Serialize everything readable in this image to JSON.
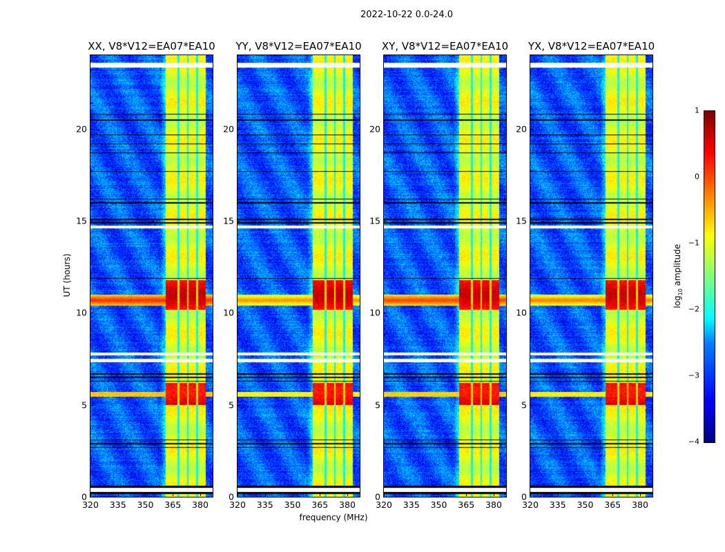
{
  "chart_data": {
    "type": "heatmap",
    "title": "2022-10-22 0.0-24.0",
    "xlabel": "frequency (MHz)",
    "ylabel": "UT (hours)",
    "xlim": [
      320,
      386.8
    ],
    "ylim": [
      0,
      24
    ],
    "xticks": [
      "320",
      "335",
      "350",
      "365",
      "380"
    ],
    "xtick_values": [
      320,
      335,
      350,
      365,
      380
    ],
    "yticks": [
      "0",
      "5",
      "10",
      "15",
      "20"
    ],
    "ytick_values": [
      0,
      5,
      10,
      15,
      20
    ],
    "panels": [
      {
        "title": "XX, V8*V12=EA07*EA10",
        "rfi_line_level": 0.2
      },
      {
        "title": "YY, V8*V12=EA07*EA10",
        "rfi_line_level": -0.3
      },
      {
        "title": "XY, V8*V12=EA07*EA10",
        "rfi_line_level": 0.1
      },
      {
        "title": "YX, V8*V12=EA07*EA10",
        "rfi_line_level": -0.2
      }
    ],
    "rfi_band_mhz": [
      361,
      383
    ],
    "rfi_band_gaps_mhz": [
      368,
      373,
      378
    ],
    "strong_rfi_times_hr": [
      [
        5.0,
        6.2
      ],
      [
        10.2,
        11.8
      ]
    ],
    "flagged_times_hr": [
      [
        0.3,
        0.5
      ],
      [
        7.35,
        7.5
      ],
      [
        7.7,
        7.85
      ],
      [
        14.6,
        14.75
      ],
      [
        23.35,
        23.6
      ]
    ],
    "colorbar": {
      "label": "log10 amplitude",
      "label_main": "log",
      "label_sub": "10",
      "label_rest": " amplitude",
      "range": [
        -4,
        1
      ],
      "ticks": [
        "1",
        "0",
        "−1",
        "−2",
        "−3",
        "−4"
      ],
      "tick_values": [
        1,
        0,
        -1,
        -2,
        -3,
        -4
      ],
      "colormap": "jet"
    }
  }
}
